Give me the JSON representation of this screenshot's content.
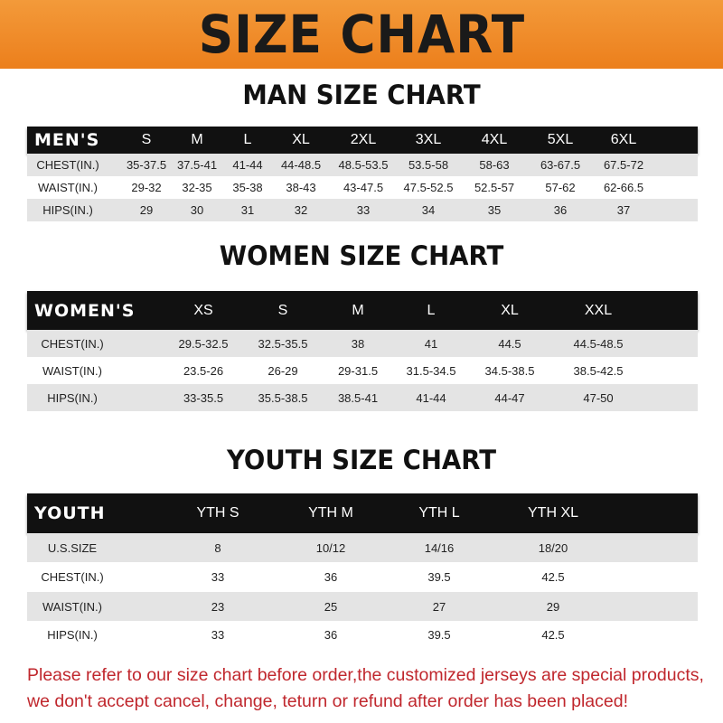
{
  "banner_title": "SIZE CHART",
  "men": {
    "title": "MAN SIZE CHART",
    "header": [
      "MEN'S",
      "S",
      "M",
      "L",
      "XL",
      "2XL",
      "3XL",
      "4XL",
      "5XL",
      "6XL"
    ],
    "rows": [
      [
        "CHEST(IN.)",
        "35-37.5",
        "37.5-41",
        "41-44",
        "44-48.5",
        "48.5-53.5",
        "53.5-58",
        "58-63",
        "63-67.5",
        "67.5-72"
      ],
      [
        "WAIST(IN.)",
        "29-32",
        "32-35",
        "35-38",
        "38-43",
        "43-47.5",
        "47.5-52.5",
        "52.5-57",
        "57-62",
        "62-66.5"
      ],
      [
        "HIPS(IN.)",
        "29",
        "30",
        "31",
        "32",
        "33",
        "34",
        "35",
        "36",
        "37"
      ]
    ]
  },
  "women": {
    "title": "WOMEN SIZE CHART",
    "header": [
      "WOMEN'S",
      "XS",
      "S",
      "M",
      "L",
      "XL",
      "XXL"
    ],
    "rows": [
      [
        "CHEST(IN.)",
        "29.5-32.5",
        "32.5-35.5",
        "38",
        "41",
        "44.5",
        "44.5-48.5"
      ],
      [
        "WAIST(IN.)",
        "23.5-26",
        "26-29",
        "29-31.5",
        "31.5-34.5",
        "34.5-38.5",
        "38.5-42.5"
      ],
      [
        "HIPS(IN.)",
        "33-35.5",
        "35.5-38.5",
        "38.5-41",
        "41-44",
        "44-47",
        "47-50"
      ]
    ]
  },
  "youth": {
    "title": "YOUTH SIZE CHART",
    "header": [
      "YOUTH",
      "YTH S",
      "YTH M",
      "YTH L",
      "YTH XL"
    ],
    "rows": [
      [
        "U.S.SIZE",
        "8",
        "10/12",
        "14/16",
        "18/20"
      ],
      [
        "CHEST(IN.)",
        "33",
        "36",
        "39.5",
        "42.5"
      ],
      [
        "WAIST(IN.)",
        "23",
        "25",
        "27",
        "29"
      ],
      [
        "HIPS(IN.)",
        "33",
        "36",
        "39.5",
        "42.5"
      ]
    ]
  },
  "footer": {
    "line1": "Please refer to our size chart before order,the customized jerseys are special products,",
    "line2": "we don't accept cancel, change, teturn or refund after order has been placed!"
  },
  "colors": {
    "banner": "#ef8a26",
    "header_row": "#111111",
    "stripe": "#e4e4e4",
    "footer_text": "#c0272d"
  }
}
